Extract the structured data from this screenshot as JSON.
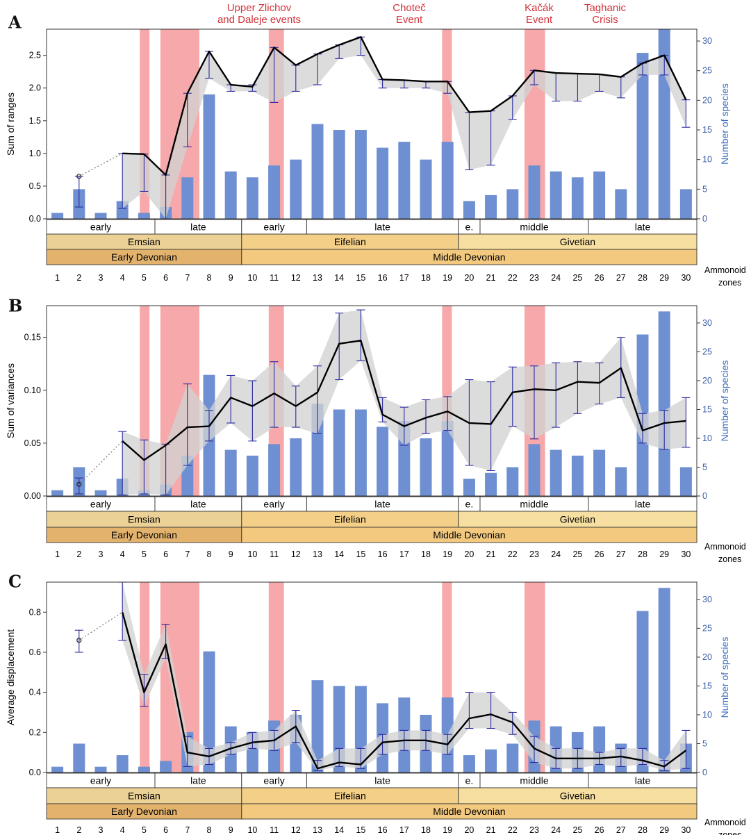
{
  "colors": {
    "bar": "#6e8fd1",
    "event": "#f7a8aa",
    "band": "#d2d2d2",
    "line": "#000000",
    "errorbar": "#2a2aa0",
    "right_axis": "#3a6fbf",
    "event_text": "#d0323a",
    "emsian": "#ecd196",
    "early_devonian": "#e3b36e",
    "eifelian": "#f4cf88",
    "givetian": "#f6dfa0",
    "middle_devonian": "#f2c97e"
  },
  "events": [
    {
      "label_lines": [
        "Upper Zlichov",
        "and Daleje events"
      ]
    },
    {
      "label_lines": [
        "Choteč",
        "Event"
      ]
    },
    {
      "label_lines": [
        "Kačák",
        "Event"
      ]
    },
    {
      "label_lines": [
        "Taghanic",
        "Crisis"
      ]
    }
  ],
  "event_spans": [
    [
      4.8,
      5.25
    ],
    [
      5.75,
      7.55
    ],
    [
      10.75,
      11.45
    ],
    [
      18.75,
      19.2
    ],
    [
      22.55,
      23.5
    ]
  ],
  "stratigraphy": {
    "substages": [
      {
        "label": "early",
        "from": 0.5,
        "to": 5.5
      },
      {
        "label": "late",
        "from": 5.5,
        "to": 9.5
      },
      {
        "label": "early",
        "from": 9.5,
        "to": 12.5
      },
      {
        "label": "late",
        "from": 12.5,
        "to": 19.5
      },
      {
        "label": "e.",
        "from": 19.5,
        "to": 20.5
      },
      {
        "label": "middle",
        "from": 20.5,
        "to": 25.5
      },
      {
        "label": "late",
        "from": 25.5,
        "to": 30.5
      }
    ],
    "stages": [
      {
        "label": "Emsian",
        "from": 0.5,
        "to": 9.5,
        "color_key": "emsian"
      },
      {
        "label": "Eifelian",
        "from": 9.5,
        "to": 19.5,
        "color_key": "eifelian"
      },
      {
        "label": "Givetian",
        "from": 19.5,
        "to": 30.5,
        "color_key": "givetian"
      }
    ],
    "series": [
      {
        "label": "Early Devonian",
        "from": 0.5,
        "to": 9.5,
        "color_key": "early_devonian"
      },
      {
        "label": "Middle Devonian",
        "from": 9.5,
        "to": 30.5,
        "color_key": "middle_devonian"
      }
    ]
  },
  "zone_axis_label": [
    "Ammonoid",
    "zones"
  ],
  "chart_data": [
    {
      "panel": "A",
      "type": "bar",
      "x": [
        1,
        2,
        3,
        4,
        5,
        6,
        7,
        8,
        9,
        10,
        11,
        12,
        13,
        14,
        15,
        16,
        17,
        18,
        19,
        20,
        21,
        22,
        23,
        24,
        25,
        26,
        27,
        28,
        29,
        30
      ],
      "ylabel": "Sum of ranges",
      "ylabel_right": "Number of species",
      "ylim": [
        0,
        2.9
      ],
      "yticks": [
        "0.0",
        "0.5",
        "1.0",
        "1.5",
        "2.0",
        "2.5"
      ],
      "ylim_right": [
        0,
        32
      ],
      "yticks_right": [
        "0",
        "5",
        "10",
        "15",
        "20",
        "25",
        "30"
      ],
      "species": [
        1,
        5,
        1,
        3,
        1,
        2,
        7,
        21,
        8,
        7,
        9,
        10,
        16,
        15,
        15,
        12,
        13,
        10,
        13,
        3,
        4,
        5,
        9,
        8,
        7,
        8,
        5,
        28,
        32,
        5
      ],
      "isolated_point": {
        "x": 2,
        "y": 0.65,
        "lo": 0.18,
        "hi": 0.65
      },
      "dotted_link": [
        [
          2,
          0.65
        ],
        [
          4,
          1.0
        ]
      ],
      "metric": [
        [
          4,
          1.0,
          0.16,
          1.0
        ],
        [
          5,
          0.99,
          0.42,
          0.99
        ],
        [
          6,
          0.67,
          0.0,
          0.67
        ],
        [
          7,
          1.92,
          1.1,
          1.92
        ],
        [
          8,
          2.56,
          2.15,
          2.56
        ],
        [
          9,
          2.05,
          1.95,
          2.05
        ],
        [
          10,
          2.02,
          1.95,
          2.05
        ],
        [
          11,
          2.62,
          1.78,
          2.62
        ],
        [
          12,
          2.35,
          1.95,
          2.35
        ],
        [
          13,
          2.52,
          2.05,
          2.52
        ],
        [
          14,
          2.66,
          2.45,
          2.66
        ],
        [
          15,
          2.78,
          2.5,
          2.78
        ],
        [
          16,
          2.13,
          2.0,
          2.13
        ],
        [
          17,
          2.12,
          2.0,
          2.12
        ],
        [
          18,
          2.1,
          2.0,
          2.1
        ],
        [
          19,
          2.1,
          1.92,
          2.1
        ],
        [
          20,
          1.63,
          0.75,
          1.63
        ],
        [
          21,
          1.65,
          0.82,
          1.65
        ],
        [
          22,
          1.88,
          1.52,
          1.88
        ],
        [
          23,
          2.27,
          2.05,
          2.27
        ],
        [
          24,
          2.23,
          1.8,
          2.23
        ],
        [
          25,
          2.22,
          1.8,
          2.22
        ],
        [
          26,
          2.21,
          1.95,
          2.21
        ],
        [
          27,
          2.17,
          1.85,
          2.17
        ],
        [
          28,
          2.38,
          2.2,
          2.38
        ],
        [
          29,
          2.5,
          2.2,
          2.5
        ],
        [
          30,
          1.82,
          1.4,
          1.82
        ]
      ]
    },
    {
      "panel": "B",
      "type": "bar",
      "x": [
        1,
        2,
        3,
        4,
        5,
        6,
        7,
        8,
        9,
        10,
        11,
        12,
        13,
        14,
        15,
        16,
        17,
        18,
        19,
        20,
        21,
        22,
        23,
        24,
        25,
        26,
        27,
        28,
        29,
        30
      ],
      "ylabel": "Sum of variances",
      "ylabel_right": "Number of species",
      "ylim": [
        0,
        0.18
      ],
      "yticks": [
        "0.00",
        "0.05",
        "0.10",
        "0.15"
      ],
      "ylim_right": [
        0,
        33
      ],
      "yticks_right": [
        "0",
        "5",
        "10",
        "15",
        "20",
        "25",
        "30"
      ],
      "species": [
        1,
        5,
        1,
        3,
        1,
        2,
        7,
        21,
        8,
        7,
        9,
        10,
        16,
        15,
        15,
        12,
        13,
        10,
        13,
        3,
        4,
        5,
        9,
        8,
        7,
        8,
        5,
        28,
        32,
        5
      ],
      "isolated_point": {
        "x": 2,
        "y": 0.011,
        "lo": 0.002,
        "hi": 0.017
      },
      "dotted_link": [
        [
          2,
          0.011
        ],
        [
          4,
          0.052
        ]
      ],
      "metric": [
        [
          4,
          0.052,
          0.001,
          0.061
        ],
        [
          5,
          0.034,
          0.002,
          0.053
        ],
        [
          6,
          0.048,
          0.001,
          0.049
        ],
        [
          7,
          0.065,
          0.029,
          0.106
        ],
        [
          8,
          0.066,
          0.052,
          0.081
        ],
        [
          9,
          0.093,
          0.069,
          0.114
        ],
        [
          10,
          0.085,
          0.052,
          0.109
        ],
        [
          11,
          0.097,
          0.065,
          0.127
        ],
        [
          12,
          0.085,
          0.065,
          0.104
        ],
        [
          13,
          0.098,
          0.059,
          0.123
        ],
        [
          14,
          0.144,
          0.11,
          0.173
        ],
        [
          15,
          0.147,
          0.128,
          0.176
        ],
        [
          16,
          0.077,
          0.07,
          0.093
        ],
        [
          17,
          0.066,
          0.048,
          0.084
        ],
        [
          18,
          0.074,
          0.059,
          0.091
        ],
        [
          19,
          0.08,
          0.062,
          0.094
        ],
        [
          20,
          0.069,
          0.029,
          0.11
        ],
        [
          21,
          0.068,
          0.024,
          0.108
        ],
        [
          22,
          0.098,
          0.066,
          0.122
        ],
        [
          23,
          0.101,
          0.054,
          0.123
        ],
        [
          24,
          0.1,
          0.065,
          0.126
        ],
        [
          25,
          0.108,
          0.078,
          0.127
        ],
        [
          26,
          0.107,
          0.087,
          0.126
        ],
        [
          27,
          0.121,
          0.093,
          0.15
        ],
        [
          28,
          0.062,
          0.05,
          0.078
        ],
        [
          29,
          0.069,
          0.044,
          0.081
        ],
        [
          30,
          0.071,
          0.046,
          0.093
        ]
      ]
    },
    {
      "panel": "C",
      "type": "bar",
      "x": [
        1,
        2,
        3,
        4,
        5,
        6,
        7,
        8,
        9,
        10,
        11,
        12,
        13,
        14,
        15,
        16,
        17,
        18,
        19,
        20,
        21,
        22,
        23,
        24,
        25,
        26,
        27,
        28,
        29,
        30
      ],
      "ylabel": "Average displacement",
      "ylabel_right": "Number of species",
      "ylim": [
        0,
        0.95
      ],
      "yticks": [
        "0.0",
        "0.2",
        "0.4",
        "0.6",
        "0.8"
      ],
      "ylim_right": [
        0,
        33
      ],
      "yticks_right": [
        "0",
        "5",
        "10",
        "15",
        "20",
        "25",
        "30"
      ],
      "species": [
        1,
        5,
        1,
        3,
        1,
        2,
        7,
        21,
        8,
        7,
        9,
        10,
        16,
        15,
        15,
        12,
        13,
        10,
        13,
        3,
        4,
        5,
        9,
        8,
        7,
        8,
        5,
        28,
        32,
        5
      ],
      "isolated_point": {
        "x": 2,
        "y": 0.66,
        "lo": 0.6,
        "hi": 0.71
      },
      "dotted_link": [
        [
          2,
          0.66
        ],
        [
          4,
          0.8
        ]
      ],
      "metric": [
        [
          4,
          0.8,
          0.66,
          0.95
        ],
        [
          5,
          0.4,
          0.33,
          0.49
        ],
        [
          6,
          0.64,
          0.57,
          0.74
        ],
        [
          7,
          0.1,
          0.03,
          0.18
        ],
        [
          8,
          0.08,
          0.04,
          0.12
        ],
        [
          9,
          0.12,
          0.09,
          0.15
        ],
        [
          10,
          0.15,
          0.12,
          0.2
        ],
        [
          11,
          0.16,
          0.11,
          0.21
        ],
        [
          12,
          0.23,
          0.15,
          0.31
        ],
        [
          13,
          0.02,
          0.01,
          0.06
        ],
        [
          14,
          0.05,
          0.03,
          0.12
        ],
        [
          15,
          0.04,
          0.02,
          0.12
        ],
        [
          16,
          0.15,
          0.09,
          0.19
        ],
        [
          17,
          0.16,
          0.11,
          0.21
        ],
        [
          18,
          0.16,
          0.11,
          0.21
        ],
        [
          19,
          0.14,
          0.09,
          0.19
        ],
        [
          20,
          0.27,
          0.22,
          0.4
        ],
        [
          21,
          0.29,
          0.22,
          0.4
        ],
        [
          22,
          0.25,
          0.19,
          0.3
        ],
        [
          23,
          0.12,
          0.05,
          0.18
        ],
        [
          24,
          0.07,
          0.02,
          0.12
        ],
        [
          25,
          0.07,
          0.02,
          0.12
        ],
        [
          26,
          0.07,
          0.04,
          0.1
        ],
        [
          27,
          0.08,
          0.03,
          0.12
        ],
        [
          28,
          0.06,
          0.04,
          0.12
        ],
        [
          29,
          0.03,
          0.01,
          0.06
        ],
        [
          30,
          0.11,
          0.02,
          0.21
        ]
      ]
    }
  ]
}
